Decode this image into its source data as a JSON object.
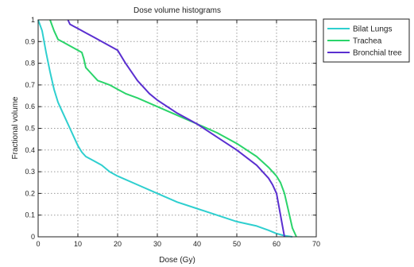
{
  "chart_data": {
    "type": "line",
    "title": "Dose volume histograms",
    "xlabel": "Dose (Gy)",
    "ylabel": "Fractional volume",
    "xlim": [
      0,
      70
    ],
    "ylim": [
      0,
      1
    ],
    "xticks": [
      0,
      10,
      20,
      30,
      40,
      50,
      60,
      70
    ],
    "xtick_labels": [
      "0",
      "10",
      "20",
      "30",
      "40",
      "50",
      "60",
      "70"
    ],
    "yticks": [
      0,
      0.1,
      0.2,
      0.3,
      0.4,
      0.5,
      0.6,
      0.7,
      0.8,
      0.9,
      1
    ],
    "ytick_labels": [
      "0",
      "0.1",
      "0.2",
      "0.3",
      "0.4",
      "0.5",
      "0.6",
      "0.7",
      "0.8",
      "0.9",
      "1"
    ],
    "grid": true,
    "legend_position": "outside-top-right",
    "series": [
      {
        "name": "Bilat Lungs",
        "color": "#2ecfcf",
        "points": [
          [
            0,
            1.0
          ],
          [
            1,
            0.95
          ],
          [
            2,
            0.85
          ],
          [
            3,
            0.76
          ],
          [
            4,
            0.68
          ],
          [
            5,
            0.62
          ],
          [
            6,
            0.58
          ],
          [
            7,
            0.54
          ],
          [
            8,
            0.5
          ],
          [
            9,
            0.46
          ],
          [
            10,
            0.42
          ],
          [
            11,
            0.39
          ],
          [
            12,
            0.37
          ],
          [
            14,
            0.35
          ],
          [
            16,
            0.33
          ],
          [
            18,
            0.3
          ],
          [
            20,
            0.28
          ],
          [
            25,
            0.24
          ],
          [
            30,
            0.2
          ],
          [
            35,
            0.16
          ],
          [
            40,
            0.13
          ],
          [
            45,
            0.1
          ],
          [
            50,
            0.07
          ],
          [
            55,
            0.05
          ],
          [
            58,
            0.03
          ],
          [
            60,
            0.015
          ],
          [
            62,
            0.005
          ],
          [
            64,
            0.0
          ]
        ]
      },
      {
        "name": "Trachea",
        "color": "#2ad46a",
        "points": [
          [
            3,
            1.0
          ],
          [
            4,
            0.95
          ],
          [
            5,
            0.91
          ],
          [
            6,
            0.9
          ],
          [
            7,
            0.89
          ],
          [
            8,
            0.88
          ],
          [
            10,
            0.86
          ],
          [
            11,
            0.85
          ],
          [
            11.5,
            0.82
          ],
          [
            12,
            0.78
          ],
          [
            13,
            0.76
          ],
          [
            15,
            0.72
          ],
          [
            18,
            0.7
          ],
          [
            20,
            0.68
          ],
          [
            22,
            0.66
          ],
          [
            25,
            0.64
          ],
          [
            30,
            0.6
          ],
          [
            35,
            0.56
          ],
          [
            40,
            0.52
          ],
          [
            45,
            0.48
          ],
          [
            50,
            0.43
          ],
          [
            55,
            0.37
          ],
          [
            58,
            0.32
          ],
          [
            60,
            0.28
          ],
          [
            61,
            0.25
          ],
          [
            62,
            0.2
          ],
          [
            63,
            0.12
          ],
          [
            64,
            0.04
          ],
          [
            65,
            0.0
          ]
        ]
      },
      {
        "name": "Bronchial tree",
        "color": "#5a2fd0",
        "points": [
          [
            7.5,
            1.0
          ],
          [
            8,
            0.98
          ],
          [
            9,
            0.97
          ],
          [
            10,
            0.96
          ],
          [
            12,
            0.94
          ],
          [
            14,
            0.92
          ],
          [
            16,
            0.9
          ],
          [
            18,
            0.88
          ],
          [
            20,
            0.86
          ],
          [
            22,
            0.8
          ],
          [
            25,
            0.72
          ],
          [
            28,
            0.66
          ],
          [
            30,
            0.63
          ],
          [
            35,
            0.57
          ],
          [
            40,
            0.52
          ],
          [
            45,
            0.46
          ],
          [
            50,
            0.4
          ],
          [
            55,
            0.33
          ],
          [
            58,
            0.27
          ],
          [
            59,
            0.24
          ],
          [
            60,
            0.2
          ],
          [
            60.5,
            0.15
          ],
          [
            61,
            0.1
          ],
          [
            61.5,
            0.05
          ],
          [
            62,
            0.0
          ]
        ]
      }
    ]
  }
}
